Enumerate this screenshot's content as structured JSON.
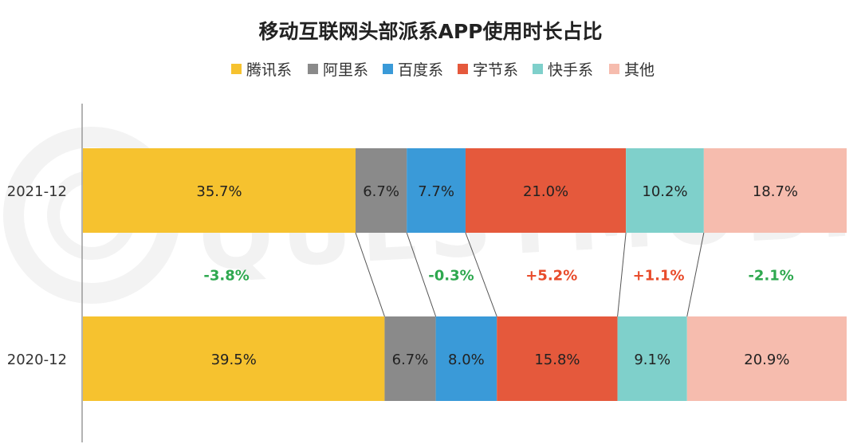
{
  "chart_data": {
    "type": "bar",
    "orientation": "horizontal",
    "stacked": true,
    "percent": true,
    "title": "移动互联网头部派系APP使用时长占比",
    "legend_position": "top",
    "categories": [
      "2021-12",
      "2020-12"
    ],
    "series": [
      {
        "name": "腾讯系",
        "color": "#f6c22f",
        "values": [
          35.7,
          39.5
        ],
        "labels": [
          "35.7%",
          "39.5%"
        ]
      },
      {
        "name": "阿里系",
        "color": "#8a8a8a",
        "values": [
          6.7,
          6.7
        ],
        "labels": [
          "6.7%",
          "6.7%"
        ]
      },
      {
        "name": "百度系",
        "color": "#3a9ad8",
        "values": [
          7.7,
          8.0
        ],
        "labels": [
          "7.7%",
          "8.0%"
        ]
      },
      {
        "name": "字节系",
        "color": "#e5593c",
        "values": [
          21.0,
          15.8
        ],
        "labels": [
          "21.0%",
          "15.8%"
        ]
      },
      {
        "name": "快手系",
        "color": "#7fd0cb",
        "values": [
          10.2,
          9.1
        ],
        "labels": [
          "10.2%",
          "9.1%"
        ]
      },
      {
        "name": "其他",
        "color": "#f6bcae",
        "values": [
          18.7,
          20.9
        ],
        "labels": [
          "18.7%",
          "20.9%"
        ]
      }
    ],
    "changes": [
      {
        "label": "-3.8%",
        "color": "#2ea84f"
      },
      {
        "label": "-0.3%",
        "color": "#2ea84f"
      },
      {
        "label": "+5.2%",
        "color": "#e84c2c"
      },
      {
        "label": "+1.1%",
        "color": "#e84c2c"
      },
      {
        "label": "-2.1%",
        "color": "#2ea84f"
      }
    ],
    "grid": false
  },
  "watermark": "QUESTMOBILE"
}
